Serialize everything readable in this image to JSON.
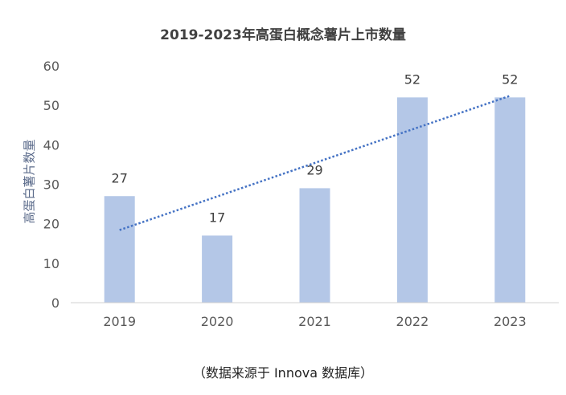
{
  "chart_data": {
    "type": "bar",
    "title": "2019-2023年高蛋白概念薯片上市数量",
    "ylabel": "高蛋白薯片数量",
    "xlabel": "",
    "categories": [
      "2019",
      "2020",
      "2021",
      "2022",
      "2023"
    ],
    "values": [
      27,
      17,
      29,
      52,
      52
    ],
    "data_labels": [
      "27",
      "17",
      "29",
      "52",
      "52"
    ],
    "ylim": [
      0,
      60
    ],
    "yticks": [
      0,
      10,
      20,
      30,
      40,
      50,
      60
    ],
    "grid": false,
    "trendline": {
      "type": "linear",
      "style": "dotted",
      "color": "#4472c4"
    },
    "bar_color": "#b4c7e7",
    "note": "（数据来源于 Innova 数据库）"
  }
}
